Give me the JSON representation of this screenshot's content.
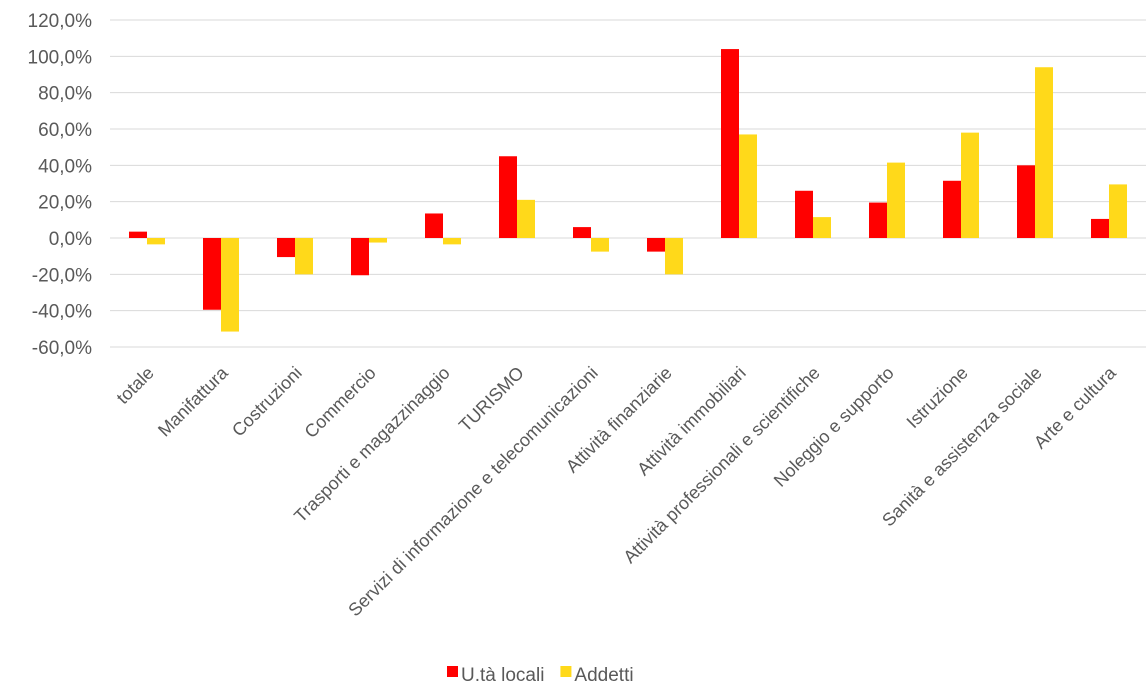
{
  "chart_data": {
    "type": "bar",
    "categories": [
      "totale",
      "Manifattura",
      "Costruzioni",
      "Commercio",
      "Trasporti e magazzinaggio",
      "TURISMO",
      "Servizi di informazione e telecomunicazioni",
      "Attività finanziarie",
      "Attività immobiliari",
      "Attività professionali e scientifiche",
      "Noleggio e supporto",
      "Istruzione",
      "Sanità e assistenza sociale",
      "Arte e cultura"
    ],
    "series": [
      {
        "name": "U.tà locali",
        "color": "#ff0000",
        "values": [
          3.5,
          -39.5,
          -10.5,
          -20.5,
          13.5,
          45.0,
          6.0,
          -7.5,
          104.0,
          26.0,
          19.5,
          31.5,
          40.0,
          10.5
        ]
      },
      {
        "name": "Addetti",
        "color": "#ffd91a",
        "values": [
          -3.5,
          -51.5,
          -20.0,
          -2.5,
          -3.5,
          21.0,
          -7.5,
          -20.0,
          57.0,
          11.5,
          41.5,
          58.0,
          94.0,
          29.5
        ]
      }
    ],
    "y_ticks": [
      "120,0%",
      "100,0%",
      "80,0%",
      "60,0%",
      "40,0%",
      "20,0%",
      "0,0%",
      "-20,0%",
      "-40,0%",
      "-60,0%"
    ],
    "ylim": [
      -60,
      120
    ],
    "y_step": 20,
    "grid": true,
    "legend_position": "bottom",
    "title": "",
    "xlabel": "",
    "ylabel": ""
  }
}
